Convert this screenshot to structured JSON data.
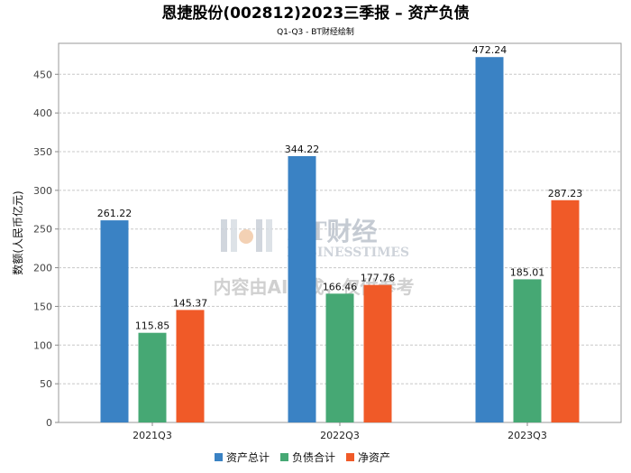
{
  "chart_data": {
    "type": "bar",
    "title": "恩捷股份(002812)2023三季报 – 资产负债",
    "subtitle": "Q1-Q3 - BT财经绘制",
    "ylabel": "数额(人民币亿元)",
    "xlabel": "",
    "categories": [
      "2021Q3",
      "2022Q3",
      "2023Q3"
    ],
    "ylim": [
      0,
      490
    ],
    "yticks": [
      0,
      50,
      100,
      150,
      200,
      250,
      300,
      350,
      400,
      450
    ],
    "grid": true,
    "legend_position": "bottom",
    "series": [
      {
        "name": "资产总计",
        "color": "#3a82c4",
        "values": [
          261.22,
          344.22,
          472.24
        ]
      },
      {
        "name": "负债合计",
        "color": "#46a874",
        "values": [
          115.85,
          166.46,
          185.01
        ]
      },
      {
        "name": "净资产",
        "color": "#f05a28",
        "values": [
          145.37,
          177.76,
          287.23
        ]
      }
    ]
  },
  "watermark": {
    "logo_text": "BT财经",
    "logo_subtext": "BUSINESSTIMES",
    "note": "内容由AI生成，仅供参考"
  }
}
